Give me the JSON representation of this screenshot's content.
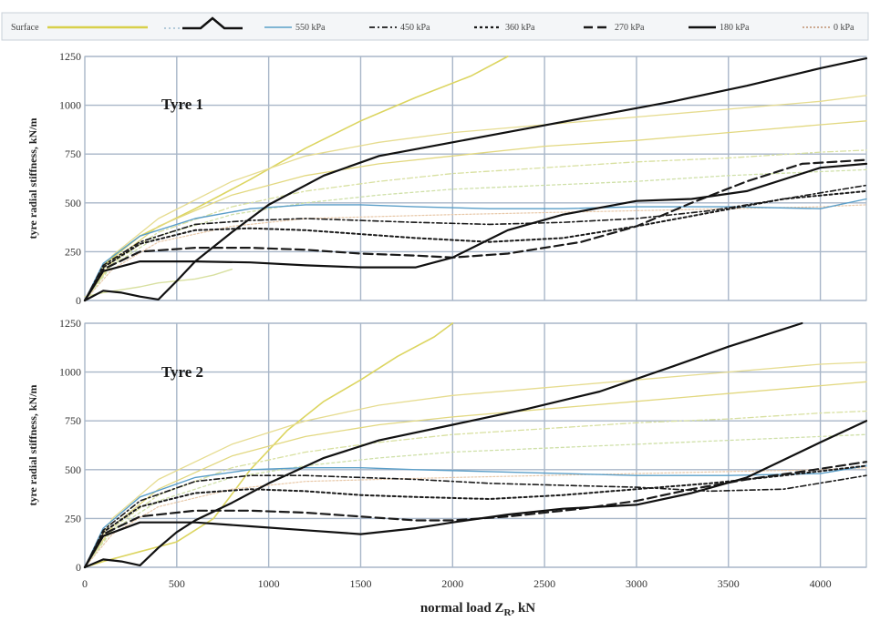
{
  "legend": {
    "items": [
      {
        "label": "Surface",
        "color": "#d8d04a",
        "dash": "",
        "width": 2.5
      },
      {
        "label": "",
        "color": "#111111",
        "dash": "",
        "width": 2.5,
        "symbol": "peak-icon"
      },
      {
        "label": "550 kPa",
        "color": "#5aa0c8",
        "dash": "",
        "width": 1.5
      },
      {
        "label": "450 kPa",
        "color": "#1a1a1a",
        "dash": "6 3 2 3",
        "width": 1.8
      },
      {
        "label": "360 kPa",
        "color": "#1a1a1a",
        "dash": "3 3",
        "width": 2.2
      },
      {
        "label": "270 kPa",
        "color": "#1a1a1a",
        "dash": "10 5",
        "width": 2.5
      },
      {
        "label": "180 kPa",
        "color": "#111111",
        "dash": "",
        "width": 2.5
      },
      {
        "label": "0 kPa",
        "color": "#c09070",
        "dash": "2 2",
        "width": 1.5
      }
    ]
  },
  "x_axis": {
    "label_main": "normal load Z",
    "label_sub": "R",
    "label_unit": ", kN",
    "ticks": [
      "0",
      "500",
      "1000",
      "1500",
      "2000",
      "2500",
      "3000",
      "3500",
      "4000"
    ]
  },
  "chart_data": [
    {
      "type": "line",
      "title": "Tyre 1",
      "ylabel": "tyre radial stiffness, kN/m",
      "xlim": [
        0,
        4250
      ],
      "ylim": [
        0,
        1250
      ],
      "yticks": [
        "0",
        "250",
        "500",
        "750",
        "1000",
        "1250"
      ],
      "series": [
        {
          "name": "Surface",
          "color": "#dcd560",
          "dash": "",
          "width": 1.6,
          "x": [
            0,
            100,
            300,
            600,
            900,
            1200,
            1500,
            1800,
            2100,
            2300
          ],
          "y": [
            0,
            180,
            330,
            470,
            620,
            780,
            920,
            1040,
            1150,
            1250
          ]
        },
        {
          "name": "",
          "color": "#e6dc90",
          "dash": "",
          "width": 1.3,
          "x": [
            0,
            150,
            400,
            800,
            1200,
            1600,
            2000,
            2500,
            3000,
            3500,
            4000,
            4250
          ],
          "y": [
            0,
            230,
            420,
            610,
            740,
            810,
            860,
            900,
            940,
            980,
            1020,
            1050
          ]
        },
        {
          "name": "",
          "color": "#e2d880",
          "dash": "",
          "width": 1.3,
          "x": [
            0,
            150,
            400,
            800,
            1200,
            1600,
            2000,
            2500,
            3000,
            3500,
            4000,
            4250
          ],
          "y": [
            0,
            200,
            380,
            540,
            640,
            700,
            740,
            790,
            820,
            860,
            900,
            920
          ]
        },
        {
          "name": "",
          "color": "#d8e0a0",
          "dash": "6 3 2 3",
          "width": 1.3,
          "x": [
            0,
            150,
            400,
            800,
            1200,
            1600,
            2000,
            2500,
            3000,
            3500,
            4000,
            4250
          ],
          "y": [
            0,
            190,
            350,
            480,
            560,
            610,
            650,
            680,
            710,
            730,
            760,
            770
          ]
        },
        {
          "name": "",
          "color": "#cfe0a8",
          "dash": "3 3",
          "width": 1.3,
          "x": [
            0,
            150,
            400,
            800,
            1200,
            1600,
            2000,
            2500,
            3000,
            3500,
            4000,
            4250
          ],
          "y": [
            0,
            180,
            330,
            440,
            500,
            540,
            570,
            590,
            610,
            640,
            660,
            670
          ]
        },
        {
          "name": "",
          "color": "#e8c8a8",
          "dash": "2 2",
          "width": 1.2,
          "x": [
            0,
            150,
            400,
            800,
            1200,
            1600,
            2000,
            2500,
            3000,
            3500,
            4000,
            4250
          ],
          "y": [
            0,
            160,
            300,
            380,
            420,
            430,
            440,
            450,
            460,
            470,
            480,
            490
          ]
        },
        {
          "name": "",
          "color": "#d8e0a0",
          "dash": "",
          "width": 1.4,
          "x": [
            0,
            100,
            200,
            300,
            400,
            600,
            700,
            800
          ],
          "y": [
            20,
            40,
            55,
            70,
            90,
            110,
            130,
            160
          ]
        },
        {
          "name": "550 kPa",
          "color": "#5a9ec8",
          "dash": "",
          "width": 1.4,
          "x": [
            0,
            100,
            300,
            600,
            900,
            1200,
            1500,
            1800,
            2200,
            2600,
            3000,
            3500,
            4000,
            4250
          ],
          "y": [
            0,
            190,
            330,
            420,
            470,
            490,
            490,
            480,
            470,
            470,
            480,
            480,
            470,
            520
          ]
        },
        {
          "name": "",
          "color": "#111111",
          "dash": "",
          "width": 2.2,
          "x": [
            0,
            100,
            200,
            300,
            400,
            500,
            600,
            800,
            1000,
            1300,
            1600,
            2000,
            2400,
            2800,
            3200,
            3600,
            4000,
            4250
          ],
          "y": [
            0,
            50,
            40,
            20,
            5,
            100,
            200,
            350,
            490,
            640,
            740,
            810,
            880,
            950,
            1020,
            1100,
            1190,
            1240
          ]
        },
        {
          "name": "450 kPa",
          "color": "#1a1a1a",
          "dash": "6 3 2 3",
          "width": 1.6,
          "x": [
            0,
            100,
            300,
            600,
            900,
            1200,
            1500,
            1800,
            2200,
            2600,
            3000,
            3400,
            3800,
            4250
          ],
          "y": [
            0,
            180,
            300,
            390,
            410,
            420,
            410,
            400,
            390,
            400,
            420,
            460,
            520,
            590
          ]
        },
        {
          "name": "360 kPa",
          "color": "#1a1a1a",
          "dash": "3 3",
          "width": 2.0,
          "x": [
            0,
            100,
            300,
            600,
            900,
            1200,
            1500,
            1800,
            2200,
            2600,
            3000,
            3400,
            3800,
            4250
          ],
          "y": [
            0,
            170,
            290,
            360,
            370,
            360,
            340,
            320,
            300,
            320,
            380,
            450,
            520,
            560
          ]
        },
        {
          "name": "270 kPa",
          "color": "#1a1a1a",
          "dash": "10 5",
          "width": 2.2,
          "x": [
            0,
            100,
            300,
            600,
            900,
            1200,
            1500,
            1800,
            2000,
            2300,
            2700,
            3000,
            3300,
            3600,
            3900,
            4250
          ],
          "y": [
            0,
            160,
            250,
            270,
            270,
            260,
            240,
            230,
            220,
            240,
            300,
            380,
            500,
            610,
            700,
            720
          ]
        },
        {
          "name": "180 kPa",
          "color": "#111111",
          "dash": "",
          "width": 2.2,
          "x": [
            0,
            100,
            300,
            600,
            900,
            1200,
            1500,
            1800,
            2000,
            2300,
            2600,
            3000,
            3300,
            3600,
            4000,
            4250
          ],
          "y": [
            0,
            150,
            200,
            200,
            195,
            180,
            170,
            170,
            220,
            360,
            440,
            510,
            520,
            560,
            680,
            700
          ]
        }
      ]
    },
    {
      "type": "line",
      "title": "Tyre 2",
      "ylabel": "tyre radial stiffness, kN/m",
      "xlim": [
        0,
        4250
      ],
      "ylim": [
        0,
        1250
      ],
      "yticks": [
        "0",
        "250",
        "500",
        "750",
        "1000",
        "1250"
      ],
      "series": [
        {
          "name": "Surface",
          "color": "#dcd560",
          "dash": "",
          "width": 1.6,
          "x": [
            0,
            100,
            300,
            500,
            700,
            900,
            1100,
            1300,
            1500,
            1700,
            1900,
            2000
          ],
          "y": [
            0,
            30,
            80,
            130,
            250,
            500,
            700,
            850,
            960,
            1080,
            1180,
            1250
          ]
        },
        {
          "name": "",
          "color": "#e6dc90",
          "dash": "",
          "width": 1.3,
          "x": [
            0,
            150,
            400,
            800,
            1200,
            1600,
            2000,
            2500,
            3000,
            3500,
            4000,
            4250
          ],
          "y": [
            0,
            250,
            450,
            630,
            750,
            830,
            880,
            920,
            960,
            1000,
            1040,
            1050
          ]
        },
        {
          "name": "",
          "color": "#e2d880",
          "dash": "",
          "width": 1.3,
          "x": [
            0,
            150,
            400,
            800,
            1200,
            1600,
            2000,
            2500,
            3000,
            3500,
            4000,
            4250
          ],
          "y": [
            0,
            210,
            400,
            570,
            670,
            730,
            770,
            810,
            850,
            890,
            930,
            950
          ]
        },
        {
          "name": "",
          "color": "#d8e0a0",
          "dash": "6 3 2 3",
          "width": 1.3,
          "x": [
            0,
            150,
            400,
            800,
            1200,
            1600,
            2000,
            2500,
            3000,
            3500,
            4000,
            4250
          ],
          "y": [
            0,
            200,
            370,
            510,
            590,
            640,
            680,
            710,
            740,
            760,
            790,
            800
          ]
        },
        {
          "name": "",
          "color": "#cfe0a8",
          "dash": "3 3",
          "width": 1.3,
          "x": [
            0,
            150,
            400,
            800,
            1200,
            1600,
            2000,
            2500,
            3000,
            3500,
            4000,
            4250
          ],
          "y": [
            0,
            190,
            340,
            460,
            520,
            560,
            590,
            610,
            630,
            650,
            670,
            680
          ]
        },
        {
          "name": "",
          "color": "#e8c8a8",
          "dash": "2 2",
          "width": 1.2,
          "x": [
            0,
            150,
            400,
            800,
            1200,
            1600,
            2000,
            2500,
            3000,
            3500,
            4000,
            4250
          ],
          "y": [
            0,
            170,
            310,
            400,
            440,
            450,
            460,
            470,
            480,
            490,
            500,
            510
          ]
        },
        {
          "name": "550 kPa",
          "color": "#5a9ec8",
          "dash": "",
          "width": 1.4,
          "x": [
            0,
            100,
            300,
            600,
            900,
            1200,
            1500,
            1800,
            2200,
            2600,
            3000,
            3500,
            4000,
            4250
          ],
          "y": [
            0,
            200,
            360,
            460,
            500,
            510,
            510,
            500,
            490,
            480,
            470,
            470,
            480,
            520
          ]
        },
        {
          "name": "",
          "color": "#111111",
          "dash": "",
          "width": 2.2,
          "x": [
            0,
            100,
            200,
            300,
            400,
            500,
            600,
            800,
            1000,
            1300,
            1600,
            2000,
            2400,
            2800,
            3200,
            3500,
            3800,
            3900
          ],
          "y": [
            0,
            40,
            30,
            10,
            100,
            180,
            240,
            330,
            430,
            560,
            650,
            730,
            810,
            900,
            1030,
            1130,
            1220,
            1250
          ]
        },
        {
          "name": "450 kPa",
          "color": "#1a1a1a",
          "dash": "6 3 2 3",
          "width": 1.6,
          "x": [
            0,
            100,
            300,
            600,
            900,
            1200,
            1500,
            1800,
            2200,
            2600,
            3000,
            3400,
            3800,
            4250
          ],
          "y": [
            0,
            190,
            340,
            440,
            470,
            470,
            460,
            450,
            430,
            420,
            410,
            390,
            400,
            470
          ]
        },
        {
          "name": "360 kPa",
          "color": "#1a1a1a",
          "dash": "3 3",
          "width": 2.0,
          "x": [
            0,
            100,
            300,
            600,
            900,
            1200,
            1500,
            1800,
            2200,
            2600,
            3000,
            3400,
            3800,
            4250
          ],
          "y": [
            0,
            180,
            310,
            380,
            400,
            390,
            370,
            360,
            350,
            370,
            400,
            430,
            470,
            520
          ]
        },
        {
          "name": "270 kPa",
          "color": "#1a1a1a",
          "dash": "10 5",
          "width": 2.2,
          "x": [
            0,
            100,
            300,
            600,
            900,
            1200,
            1500,
            1800,
            2000,
            2300,
            2700,
            3000,
            3300,
            3600,
            3900,
            4250
          ],
          "y": [
            0,
            170,
            260,
            290,
            290,
            280,
            260,
            240,
            240,
            260,
            300,
            340,
            400,
            450,
            490,
            540
          ]
        },
        {
          "name": "180 kPa",
          "color": "#111111",
          "dash": "",
          "width": 2.2,
          "x": [
            0,
            100,
            300,
            600,
            900,
            1200,
            1500,
            1800,
            2000,
            2300,
            2600,
            3000,
            3300,
            3600,
            4000,
            4250
          ],
          "y": [
            0,
            160,
            230,
            230,
            210,
            190,
            170,
            200,
            230,
            270,
            300,
            320,
            380,
            460,
            640,
            750
          ]
        }
      ]
    }
  ]
}
